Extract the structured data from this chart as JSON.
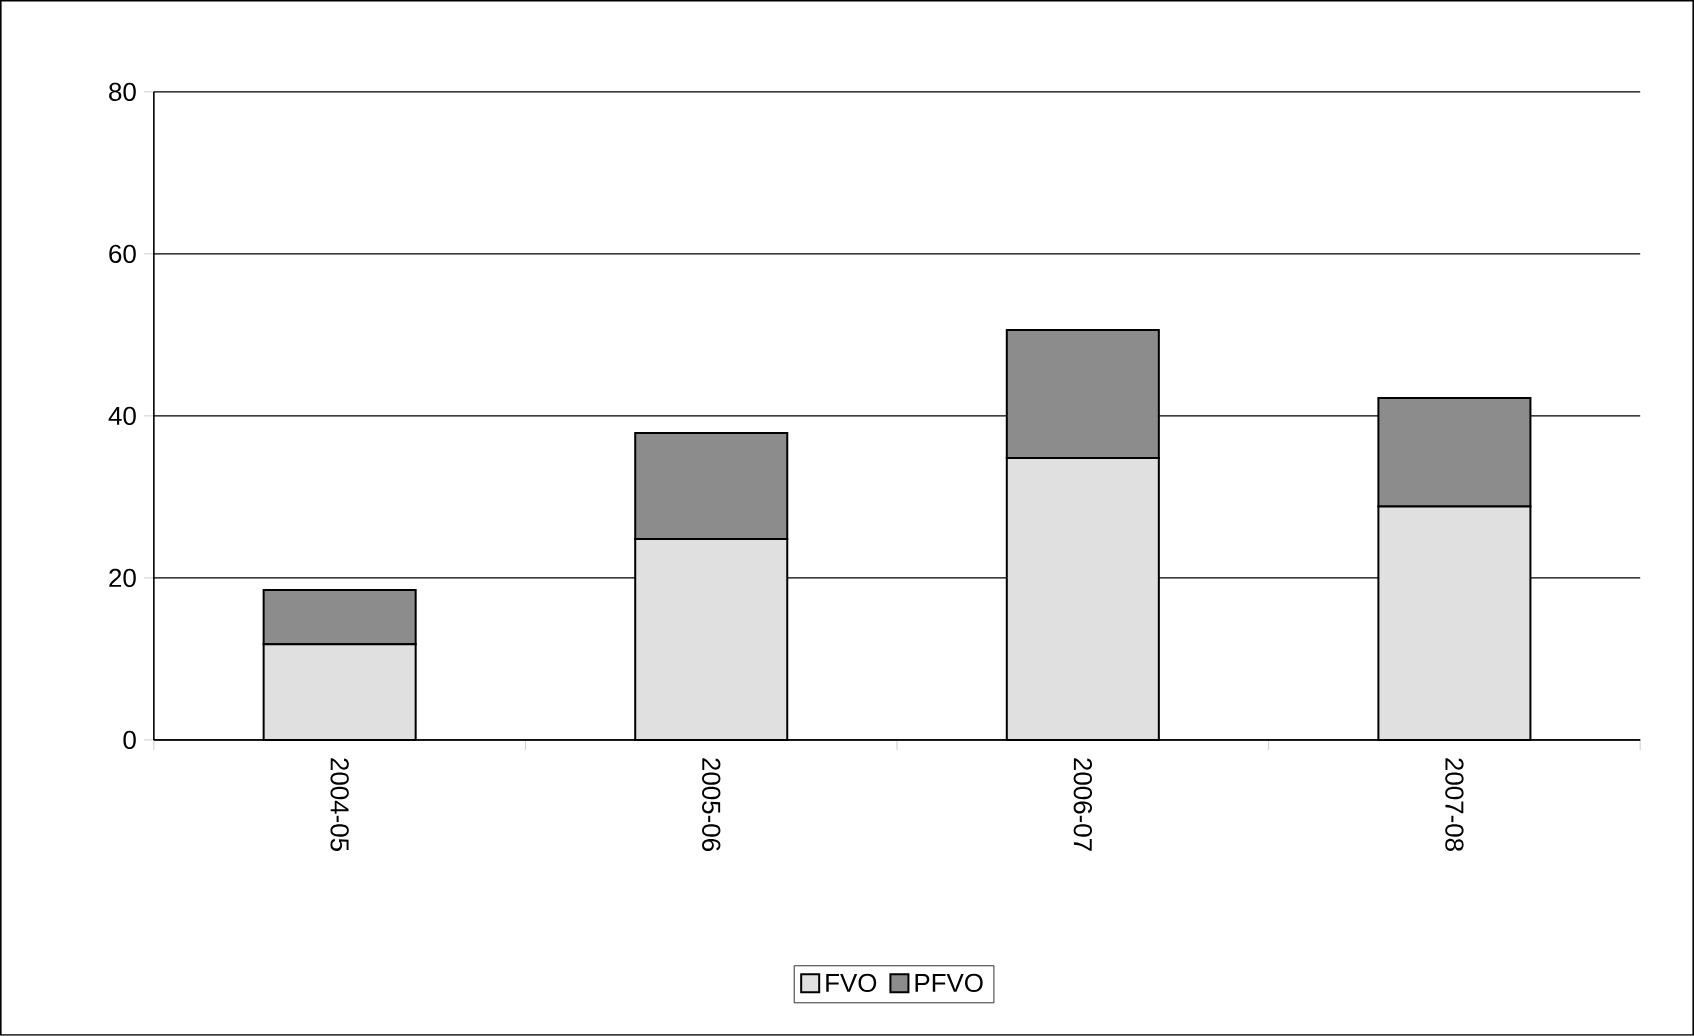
{
  "chart_data": {
    "type": "bar",
    "stacked": true,
    "categories": [
      "2004-05",
      "2005-06",
      "2006-07",
      "2007-08"
    ],
    "series": [
      {
        "name": "FVO",
        "color": "#e0e0e0",
        "values": [
          11.8,
          24.8,
          34.8,
          28.8
        ]
      },
      {
        "name": "PFVO",
        "color": "#8c8c8c",
        "values": [
          6.7,
          13.1,
          15.8,
          13.4
        ]
      }
    ],
    "ylim": [
      0,
      80
    ],
    "yticks": [
      0,
      20,
      40,
      60,
      80
    ],
    "grid": "y",
    "legend": "bottom"
  }
}
